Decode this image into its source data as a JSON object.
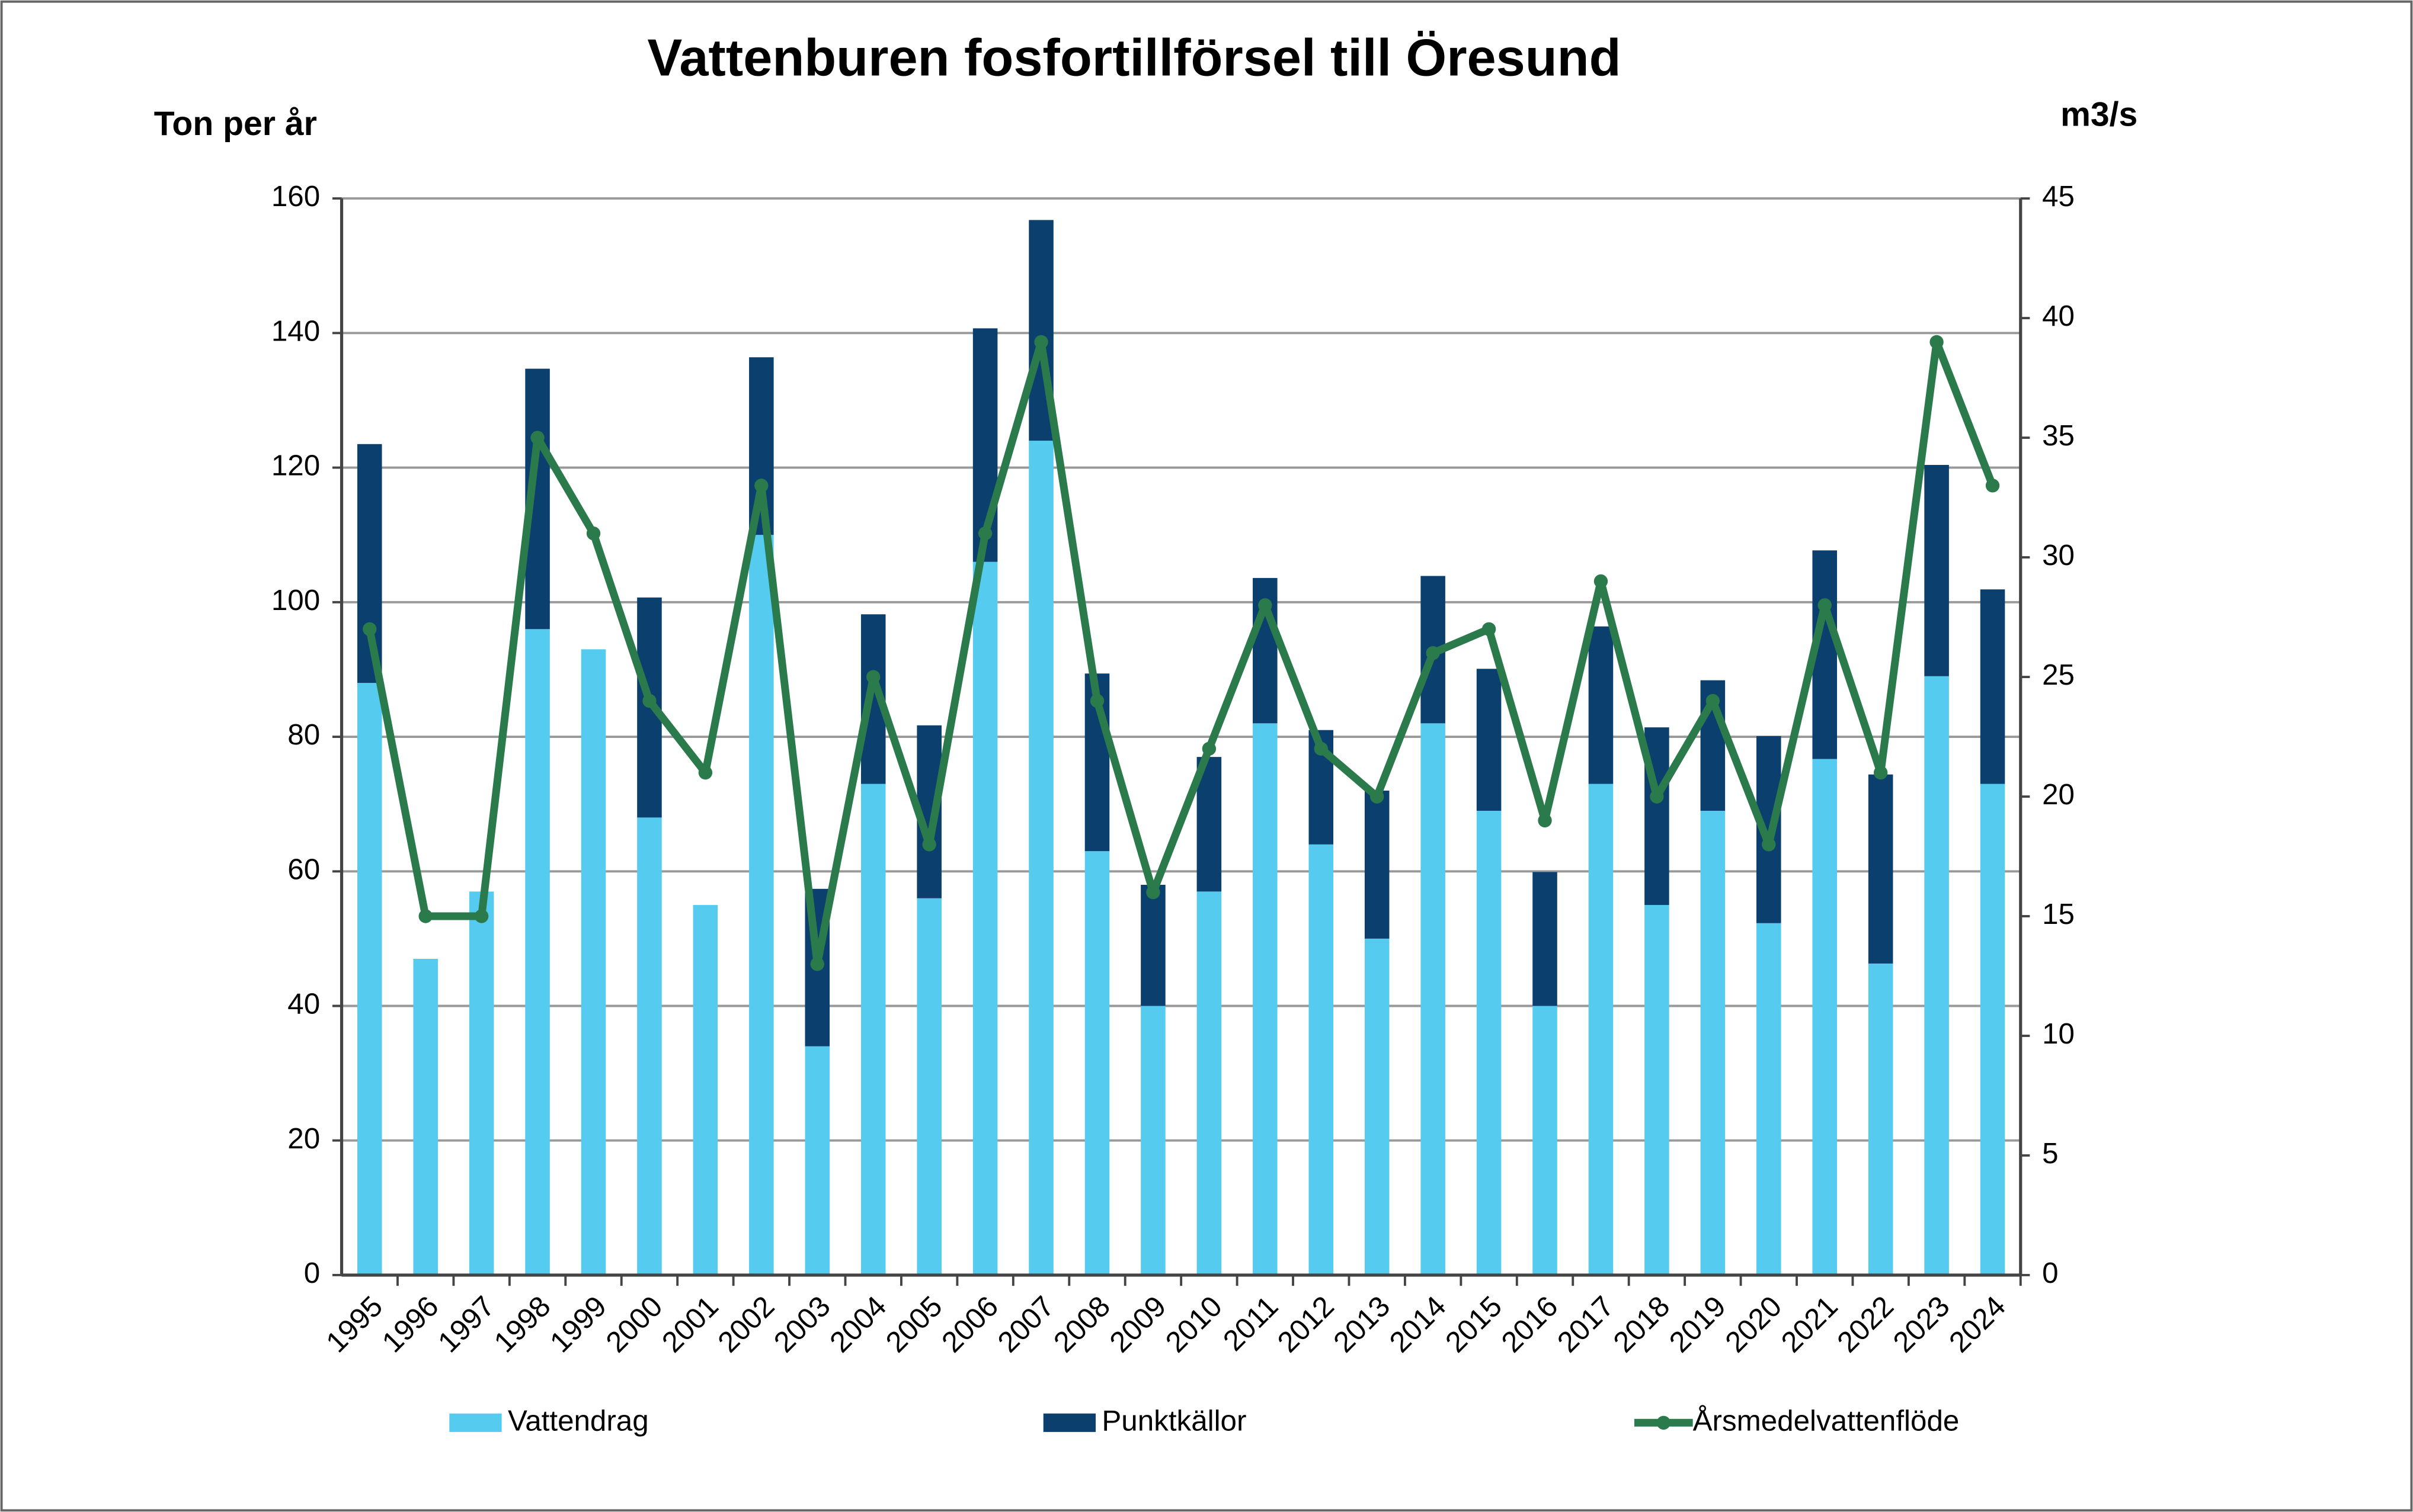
{
  "chart_data": {
    "type": "bar",
    "stacked": true,
    "title": "Vattenburen fosfortillförsel till Öresund",
    "y_label": "Ton per år",
    "y2_label": "m3/s",
    "categories": [
      "1995",
      "1996",
      "1997",
      "1998",
      "1999",
      "2000",
      "2001",
      "2002",
      "2003",
      "2004",
      "2005",
      "2006",
      "2007",
      "2008",
      "2009",
      "2010",
      "2011",
      "2012",
      "2013",
      "2014",
      "2015",
      "2016",
      "2017",
      "2018",
      "2019",
      "2020",
      "2021",
      "2022",
      "2023",
      "2024"
    ],
    "series": [
      {
        "name": "Vattendrag",
        "type": "bar",
        "color": "#56cbf0",
        "values": [
          88,
          47,
          57,
          96,
          93,
          68,
          55,
          110,
          34,
          73,
          56,
          106,
          124,
          63,
          40,
          57,
          82,
          64,
          50,
          82,
          69,
          40,
          73,
          55,
          69,
          52.3,
          76.7,
          46.3,
          89,
          73
        ]
      },
      {
        "name": "Punktkällor",
        "type": "bar",
        "color": "#0a3f6e",
        "values": [
          35.5,
          0,
          0,
          38.7,
          0,
          32.7,
          0,
          26.4,
          23.4,
          25.2,
          25.7,
          34.7,
          32.8,
          26.4,
          18,
          20,
          21.6,
          17,
          22,
          21.9,
          21.1,
          19.9,
          23.4,
          26.4,
          19.4,
          27.8,
          31,
          28.1,
          31.4,
          28.9
        ]
      },
      {
        "name": "Årsmedelvattenflöde",
        "type": "line",
        "axis": "y2",
        "color": "#2a7a4b",
        "values": [
          27,
          15,
          15,
          35,
          31,
          24,
          21,
          33,
          13,
          25,
          18,
          31,
          39,
          24,
          16,
          22,
          28,
          22,
          20,
          26,
          27,
          19,
          29,
          20,
          24,
          18,
          28,
          21,
          39,
          33
        ]
      }
    ],
    "ylim": [
      0,
      160
    ],
    "yticks": [
      0,
      20,
      40,
      60,
      80,
      100,
      120,
      140,
      160
    ],
    "y2lim": [
      0,
      45
    ],
    "y2ticks": [
      0,
      5,
      10,
      15,
      20,
      25,
      30,
      35,
      40,
      45
    ],
    "grid": true,
    "legend": "bottom"
  }
}
